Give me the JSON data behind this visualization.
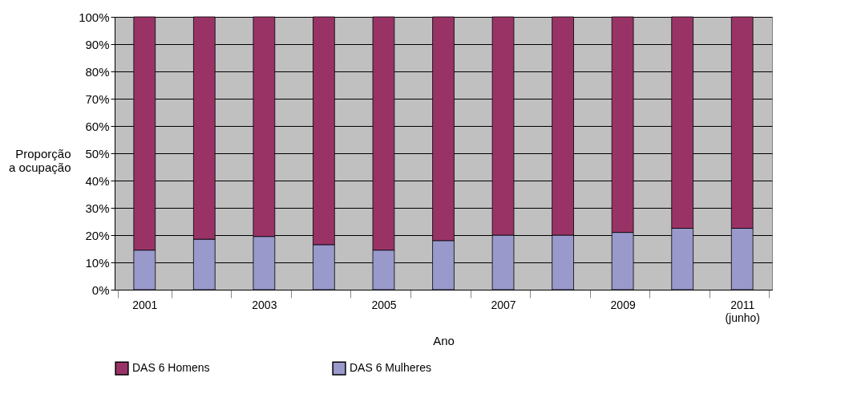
{
  "chart_data": {
    "type": "bar",
    "stacked": true,
    "xlabel": "Ano",
    "ylabel": "Proporção a ocupação",
    "categories": [
      "2001",
      null,
      "2003",
      null,
      "2005",
      null,
      "2007",
      null,
      "2009",
      null,
      "2011 (junho)"
    ],
    "series": [
      {
        "name": "DAS 6 Mulheres",
        "color": "#9999cc",
        "values": [
          14.5,
          18.5,
          19.5,
          16.5,
          14.5,
          18,
          20,
          20,
          21,
          22.5,
          22.5
        ]
      },
      {
        "name": "DAS 6 Homens",
        "color": "#993366",
        "values": [
          85.5,
          81.5,
          80.5,
          83.5,
          85.5,
          82,
          80,
          80,
          79,
          77.5,
          77.5
        ]
      }
    ],
    "ylim": [
      0,
      100
    ],
    "yticks": [
      {
        "value": 0,
        "label": "0%"
      },
      {
        "value": 10,
        "label": "10%"
      },
      {
        "value": 20,
        "label": "20%"
      },
      {
        "value": 30,
        "label": "30%"
      },
      {
        "value": 40,
        "label": "40%"
      },
      {
        "value": 50,
        "label": "50%"
      },
      {
        "value": 60,
        "label": "60%"
      },
      {
        "value": 70,
        "label": "70%"
      },
      {
        "value": 80,
        "label": "80%"
      },
      {
        "value": 90,
        "label": "90%"
      },
      {
        "value": 100,
        "label": "100%"
      }
    ],
    "grid": "y",
    "legend": "bottom"
  }
}
